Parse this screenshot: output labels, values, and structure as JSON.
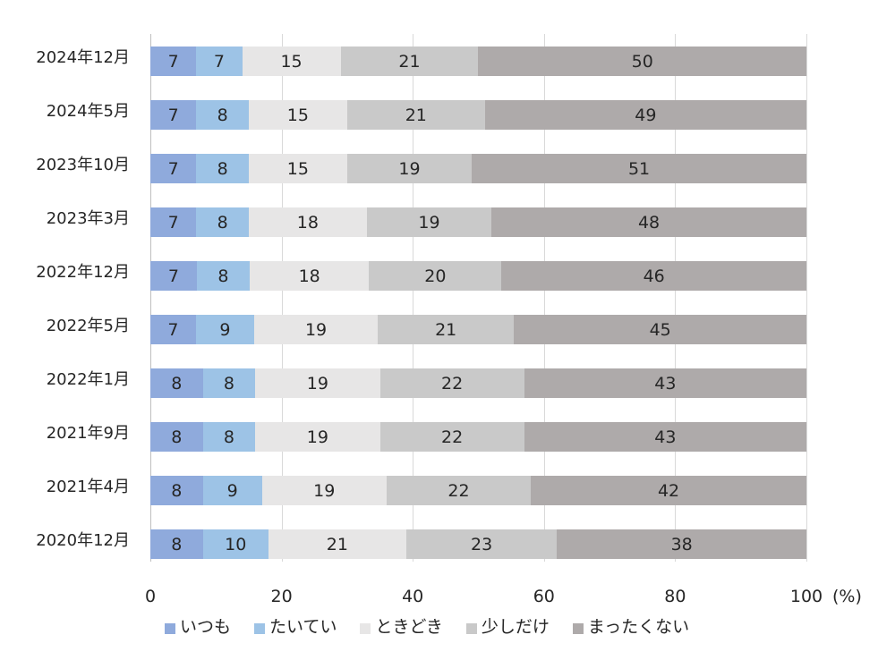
{
  "chart_data": {
    "type": "bar",
    "orientation": "horizontal",
    "stacked": "percent",
    "title": "",
    "xlabel": "",
    "ylabel": "",
    "xunit": "(%)",
    "xlim": [
      0,
      100
    ],
    "xticks": [
      "0",
      "20",
      "40",
      "60",
      "80",
      "100"
    ],
    "grid": true,
    "legend_position": "bottom",
    "categories": [
      "2024年12月",
      "2024年5月",
      "2023年10月",
      "2023年3月",
      "2022年12月",
      "2022年5月",
      "2022年1月",
      "2021年9月",
      "2021年4月",
      "2020年12月"
    ],
    "series": [
      {
        "name": "いつも",
        "color": "#8faadc",
        "values": [
          7,
          7,
          7,
          7,
          7,
          7,
          8,
          8,
          8,
          8
        ]
      },
      {
        "name": "たいてい",
        "color": "#9dc3e6",
        "values": [
          7,
          8,
          8,
          8,
          8,
          9,
          8,
          8,
          9,
          10
        ]
      },
      {
        "name": "ときどき",
        "color": "#e7e6e6",
        "values": [
          15,
          15,
          15,
          18,
          18,
          19,
          19,
          19,
          19,
          21
        ]
      },
      {
        "name": "少しだけ",
        "color": "#c9c9c9",
        "values": [
          21,
          21,
          19,
          19,
          20,
          21,
          22,
          22,
          22,
          23
        ]
      },
      {
        "name": "まったくない",
        "color": "#aeaaaa",
        "values": [
          50,
          49,
          51,
          48,
          46,
          45,
          43,
          43,
          42,
          38
        ]
      }
    ]
  }
}
